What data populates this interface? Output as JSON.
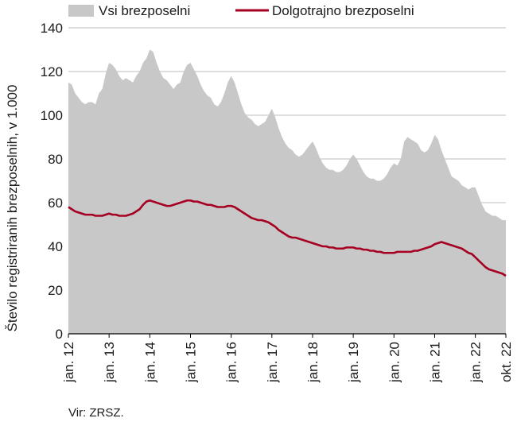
{
  "chart_data": {
    "type": "area",
    "ylabel": "Število registriranih brezposelnih, v 1.000",
    "source": "Vir: ZRSZ.",
    "ylim": [
      0,
      140
    ],
    "yticks": [
      0,
      20,
      40,
      60,
      80,
      100,
      120,
      140
    ],
    "x_start": "2012-01",
    "x_end": "2022-10",
    "grid": "horizontal",
    "legend_position": "top",
    "xtick_labels": [
      {
        "label": "jan. 12",
        "x": "2012-01"
      },
      {
        "label": "jan. 13",
        "x": "2013-01"
      },
      {
        "label": "jan. 14",
        "x": "2014-01"
      },
      {
        "label": "jan. 15",
        "x": "2015-01"
      },
      {
        "label": "jan. 16",
        "x": "2016-01"
      },
      {
        "label": "jan. 17",
        "x": "2017-01"
      },
      {
        "label": "jan. 18",
        "x": "2018-01"
      },
      {
        "label": "jan. 19",
        "x": "2019-01"
      },
      {
        "label": "jan. 20",
        "x": "2020-01"
      },
      {
        "label": "jan. 21",
        "x": "2021-01"
      },
      {
        "label": "jan. 22",
        "x": "2022-01"
      },
      {
        "label": "okt. 22",
        "x": "2022-10"
      }
    ],
    "series": [
      {
        "name": "Vsi brezposelni",
        "type": "area",
        "color": "#c8c8c8",
        "values": [
          [
            115,
            114,
            110,
            108,
            106,
            105,
            106,
            106,
            105,
            110,
            112,
            119
          ],
          [
            124,
            123,
            121,
            118,
            116,
            117,
            116,
            115,
            118,
            120,
            124,
            126
          ],
          [
            130,
            129,
            124,
            120,
            117,
            116,
            114,
            112,
            114,
            115,
            120,
            123
          ],
          [
            124,
            121,
            118,
            114,
            111,
            109,
            108,
            105,
            104,
            106,
            110,
            115
          ],
          [
            118,
            115,
            110,
            105,
            101,
            99,
            98,
            96,
            95,
            96,
            97,
            100
          ],
          [
            103,
            99,
            94,
            90,
            87,
            85,
            84,
            82,
            81,
            82,
            84,
            86
          ],
          [
            88,
            85,
            81,
            78,
            76,
            75,
            75,
            74,
            74,
            75,
            77,
            80
          ],
          [
            82,
            80,
            77,
            74,
            72,
            71,
            71,
            70,
            70,
            71,
            73,
            76
          ],
          [
            78,
            77,
            80,
            88,
            90,
            89,
            88,
            87,
            84,
            83,
            84,
            87
          ],
          [
            91,
            89,
            84,
            80,
            76,
            72,
            71,
            70,
            68,
            67,
            66,
            67
          ],
          [
            67,
            63,
            59,
            56,
            55,
            54,
            54,
            53,
            52,
            52
          ]
        ]
      },
      {
        "name": "Dolgotrajno brezposelni",
        "type": "line",
        "color": "#a50021",
        "values": [
          [
            58,
            57,
            56,
            55.5,
            55,
            54.5,
            54.5,
            54.5,
            54,
            54,
            54,
            54.5
          ],
          [
            55,
            54.5,
            54.5,
            54,
            54,
            54,
            54.5,
            55,
            56,
            57,
            59,
            60.5
          ],
          [
            61,
            60.5,
            60,
            59.5,
            59,
            58.5,
            58.5,
            59,
            59.5,
            60,
            60.5,
            61
          ],
          [
            61,
            60.5,
            60.5,
            60,
            59.5,
            59,
            59,
            58.5,
            58,
            58,
            58,
            58.5
          ],
          [
            58.5,
            58,
            57,
            56,
            55,
            54,
            53,
            52.5,
            52,
            52,
            51.5,
            51
          ],
          [
            50,
            49,
            47.5,
            46.5,
            45.5,
            44.5,
            44,
            44,
            43.5,
            43,
            42.5,
            42
          ],
          [
            41.5,
            41,
            40.5,
            40,
            40,
            39.5,
            39.5,
            39,
            39,
            39,
            39.5,
            39.5
          ],
          [
            39.5,
            39,
            39,
            38.5,
            38.5,
            38,
            38,
            37.5,
            37.5,
            37,
            37,
            37
          ],
          [
            37,
            37.5,
            37.5,
            37.5,
            37.5,
            37.5,
            38,
            38,
            38.5,
            39,
            39.5,
            40
          ],
          [
            41,
            41.5,
            42,
            41.5,
            41,
            40.5,
            40,
            39.5,
            39,
            38,
            37,
            36.5
          ],
          [
            35,
            33.5,
            32,
            30.5,
            29.5,
            29,
            28.5,
            28,
            27.5,
            26.5
          ]
        ]
      }
    ]
  }
}
